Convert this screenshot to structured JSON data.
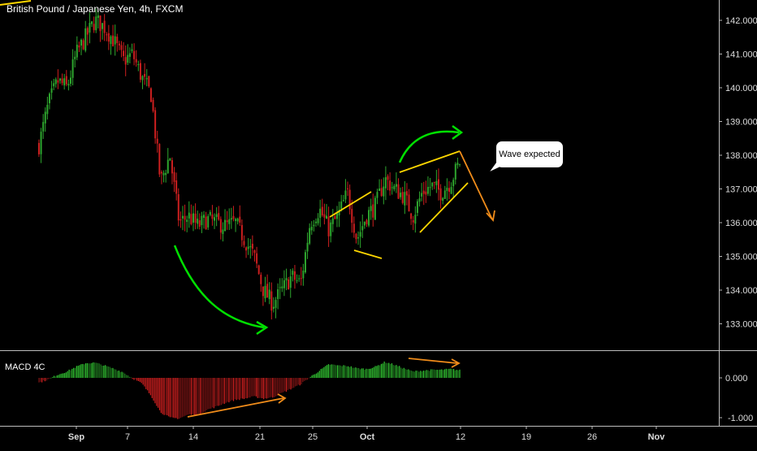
{
  "header": {
    "title": "British Pound / Japanese Yen, 4h, FXCM",
    "indicator": "MACD 4C"
  },
  "annotation": {
    "callout_text": "Wave expected"
  },
  "colors": {
    "background": "#000000",
    "bull": "#2ea62e",
    "bear": "#cc1f1f",
    "green_arrow": "#00e000",
    "yellow_line": "#ffd700",
    "orange_arrow": "#f08c1a",
    "axis_text": "#dddddd",
    "divider": "#bdbdbd"
  },
  "x_axis": {
    "labels": [
      {
        "label": "Sep",
        "bold": true
      },
      {
        "label": "7",
        "bold": false
      },
      {
        "label": "14",
        "bold": false
      },
      {
        "label": "21",
        "bold": false
      },
      {
        "label": "25",
        "bold": false
      },
      {
        "label": "Oct",
        "bold": true
      },
      {
        "label": "12",
        "bold": false
      },
      {
        "label": "19",
        "bold": false
      },
      {
        "label": "26",
        "bold": false
      },
      {
        "label": "Nov",
        "bold": true
      }
    ]
  },
  "chart_data": [
    {
      "type": "candlestick",
      "title": "British Pound / Japanese Yen, 4h, FXCM",
      "price_axis": {
        "ticks": [
          "142.000",
          "141.000",
          "140.000",
          "139.000",
          "138.000",
          "137.000",
          "136.000",
          "135.000",
          "134.000",
          "133.000"
        ],
        "ylim": [
          132.6,
          142.6
        ]
      },
      "grid": false,
      "path_points": [
        {
          "date": "Aug 28",
          "price": 138.3
        },
        {
          "date": "Aug 29",
          "price": 139.5
        },
        {
          "date": "Aug 30",
          "price": 140.2
        },
        {
          "date": "Aug 31",
          "price": 140.0
        },
        {
          "date": "Sep 1",
          "price": 141.0
        },
        {
          "date": "Sep 2",
          "price": 141.5
        },
        {
          "date": "Sep 3",
          "price": 142.0
        },
        {
          "date": "Sep 4",
          "price": 141.8
        },
        {
          "date": "Sep 5",
          "price": 141.4
        },
        {
          "date": "Sep 6",
          "price": 140.8
        },
        {
          "date": "Sep 7",
          "price": 141.0
        },
        {
          "date": "Sep 8",
          "price": 140.3
        },
        {
          "date": "Sep 9",
          "price": 139.8
        },
        {
          "date": "Sep 10",
          "price": 137.2
        },
        {
          "date": "Sep 11",
          "price": 138.0
        },
        {
          "date": "Sep 12",
          "price": 136.0
        },
        {
          "date": "Sep 13",
          "price": 136.2
        },
        {
          "date": "Sep 14",
          "price": 135.9
        },
        {
          "date": "Sep 15",
          "price": 136.1
        },
        {
          "date": "Sep 16",
          "price": 136.0
        },
        {
          "date": "Sep 17",
          "price": 135.9
        },
        {
          "date": "Sep 18",
          "price": 136.0
        },
        {
          "date": "Sep 19",
          "price": 135.5
        },
        {
          "date": "Sep 20",
          "price": 135.0
        },
        {
          "date": "Sep 21",
          "price": 134.0
        },
        {
          "date": "Sep 22",
          "price": 133.6
        },
        {
          "date": "Sep 23",
          "price": 134.0
        },
        {
          "date": "Sep 24",
          "price": 134.4
        },
        {
          "date": "Sep 25",
          "price": 134.2
        },
        {
          "date": "Sep 26",
          "price": 136.0
        },
        {
          "date": "Sep 27",
          "price": 136.4
        },
        {
          "date": "Sep 28",
          "price": 135.8
        },
        {
          "date": "Sep 29",
          "price": 136.2
        },
        {
          "date": "Sep 30",
          "price": 136.9
        },
        {
          "date": "Oct 1",
          "price": 135.5
        },
        {
          "date": "Oct 2",
          "price": 136.2
        },
        {
          "date": "Oct 3",
          "price": 136.5
        },
        {
          "date": "Oct 4",
          "price": 137.3
        },
        {
          "date": "Oct 5",
          "price": 137.0
        },
        {
          "date": "Oct 6",
          "price": 136.8
        },
        {
          "date": "Oct 7",
          "price": 136.2
        },
        {
          "date": "Oct 8",
          "price": 136.9
        },
        {
          "date": "Oct 9",
          "price": 137.1
        },
        {
          "date": "Oct 10",
          "price": 136.9
        },
        {
          "date": "Oct 11",
          "price": 137.2
        },
        {
          "date": "Oct 12",
          "price": 137.8
        }
      ]
    },
    {
      "type": "histogram",
      "title": "MACD 4C",
      "value_axis": {
        "ticks": [
          "0.000",
          "-1.000"
        ],
        "ylim": [
          -1.12,
          0.62
        ]
      },
      "path_points": [
        {
          "date": "Aug 28",
          "value": -0.12
        },
        {
          "date": "Aug 29",
          "value": -0.04
        },
        {
          "date": "Aug 30",
          "value": 0.08
        },
        {
          "date": "Aug 31",
          "value": 0.16
        },
        {
          "date": "Sep 1",
          "value": 0.28
        },
        {
          "date": "Sep 2",
          "value": 0.37
        },
        {
          "date": "Sep 3",
          "value": 0.38
        },
        {
          "date": "Sep 4",
          "value": 0.31
        },
        {
          "date": "Sep 5",
          "value": 0.23
        },
        {
          "date": "Sep 6",
          "value": 0.14
        },
        {
          "date": "Sep 7",
          "value": -0.01
        },
        {
          "date": "Sep 8",
          "value": -0.14
        },
        {
          "date": "Sep 9",
          "value": -0.45
        },
        {
          "date": "Sep 10",
          "value": -0.86
        },
        {
          "date": "Sep 11",
          "value": -1.0
        },
        {
          "date": "Sep 12",
          "value": -1.02
        },
        {
          "date": "Sep 13",
          "value": -0.92
        },
        {
          "date": "Sep 14",
          "value": -0.93
        },
        {
          "date": "Sep 15",
          "value": -0.8
        },
        {
          "date": "Sep 16",
          "value": -0.72
        },
        {
          "date": "Sep 17",
          "value": -0.62
        },
        {
          "date": "Sep 18",
          "value": -0.55
        },
        {
          "date": "Sep 19",
          "value": -0.52
        },
        {
          "date": "Sep 20",
          "value": -0.47
        },
        {
          "date": "Sep 21",
          "value": -0.52
        },
        {
          "date": "Sep 22",
          "value": -0.49
        },
        {
          "date": "Sep 23",
          "value": -0.38
        },
        {
          "date": "Sep 24",
          "value": -0.27
        },
        {
          "date": "Sep 25",
          "value": -0.16
        },
        {
          "date": "Sep 26",
          "value": 0.02
        },
        {
          "date": "Sep 27",
          "value": 0.18
        },
        {
          "date": "Sep 28",
          "value": 0.34
        },
        {
          "date": "Sep 29",
          "value": 0.31
        },
        {
          "date": "Sep 30",
          "value": 0.3
        },
        {
          "date": "Oct 1",
          "value": 0.24
        },
        {
          "date": "Oct 2",
          "value": 0.22
        },
        {
          "date": "Oct 3",
          "value": 0.28
        },
        {
          "date": "Oct 4",
          "value": 0.4
        },
        {
          "date": "Oct 5",
          "value": 0.33
        },
        {
          "date": "Oct 6",
          "value": 0.24
        },
        {
          "date": "Oct 7",
          "value": 0.16
        },
        {
          "date": "Oct 8",
          "value": 0.18
        },
        {
          "date": "Oct 9",
          "value": 0.2
        },
        {
          "date": "Oct 10",
          "value": 0.2
        },
        {
          "date": "Oct 11",
          "value": 0.22
        },
        {
          "date": "Oct 12",
          "value": 0.19
        }
      ]
    }
  ]
}
